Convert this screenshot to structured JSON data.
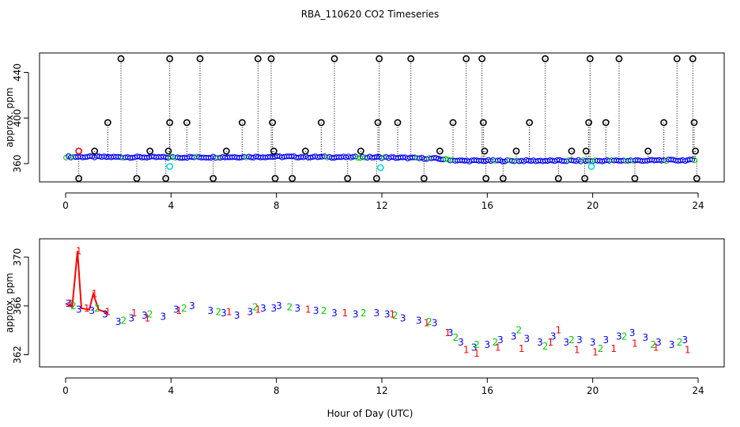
{
  "chart_data": {
    "type": "scatter",
    "title": "RBA_110620  CO2 Timeseries",
    "xlabel": "Hour of Day (UTC)",
    "xlim": [
      0,
      24
    ],
    "xticks": [
      0,
      4,
      8,
      12,
      16,
      20,
      24
    ],
    "colors": {
      "flag_1": "#ff0000",
      "flag_2": "#00cc00",
      "flag_3": "#0000ff",
      "outlier": "#000000",
      "cyan": "#00dddd"
    },
    "panels": [
      {
        "name": "top",
        "ylabel": "approx. ppm",
        "yticks": [
          360,
          400,
          440
        ],
        "ylim": [
          344,
          457
        ],
        "baseline": [
          [
            0,
            366
          ],
          [
            4,
            365.5
          ],
          [
            8,
            366
          ],
          [
            12,
            365.5
          ],
          [
            14,
            364.5
          ],
          [
            15,
            362.5
          ],
          [
            16,
            362.5
          ],
          [
            20,
            362.5
          ],
          [
            24,
            363
          ]
        ],
        "outliers": [
          {
            "x": 0.5,
            "y": 347
          },
          {
            "x": 1.1,
            "y": 371
          },
          {
            "x": 1.6,
            "y": 396
          },
          {
            "x": 2.1,
            "y": 452
          },
          {
            "x": 2.7,
            "y": 347
          },
          {
            "x": 3.2,
            "y": 371
          },
          {
            "x": 3.8,
            "y": 347
          },
          {
            "x": 3.9,
            "y": 371
          },
          {
            "x": 3.95,
            "y": 396
          },
          {
            "x": 3.95,
            "y": 452
          },
          {
            "x": 4.6,
            "y": 396
          },
          {
            "x": 5.1,
            "y": 452
          },
          {
            "x": 5.6,
            "y": 347
          },
          {
            "x": 6.1,
            "y": 371
          },
          {
            "x": 6.7,
            "y": 396
          },
          {
            "x": 7.3,
            "y": 452
          },
          {
            "x": 7.8,
            "y": 452
          },
          {
            "x": 7.85,
            "y": 396
          },
          {
            "x": 7.9,
            "y": 371
          },
          {
            "x": 7.95,
            "y": 347
          },
          {
            "x": 8.6,
            "y": 347
          },
          {
            "x": 9.1,
            "y": 371
          },
          {
            "x": 9.7,
            "y": 396
          },
          {
            "x": 10.2,
            "y": 452
          },
          {
            "x": 10.7,
            "y": 347
          },
          {
            "x": 11.2,
            "y": 371
          },
          {
            "x": 11.8,
            "y": 347
          },
          {
            "x": 11.85,
            "y": 396
          },
          {
            "x": 11.9,
            "y": 452
          },
          {
            "x": 12.6,
            "y": 396
          },
          {
            "x": 13.1,
            "y": 452
          },
          {
            "x": 13.6,
            "y": 347
          },
          {
            "x": 14.2,
            "y": 371
          },
          {
            "x": 14.7,
            "y": 396
          },
          {
            "x": 15.2,
            "y": 452
          },
          {
            "x": 15.8,
            "y": 452
          },
          {
            "x": 15.85,
            "y": 396
          },
          {
            "x": 15.9,
            "y": 371
          },
          {
            "x": 15.95,
            "y": 347
          },
          {
            "x": 16.6,
            "y": 347
          },
          {
            "x": 17.1,
            "y": 371
          },
          {
            "x": 17.6,
            "y": 396
          },
          {
            "x": 18.2,
            "y": 452
          },
          {
            "x": 18.7,
            "y": 347
          },
          {
            "x": 19.2,
            "y": 371
          },
          {
            "x": 19.7,
            "y": 347
          },
          {
            "x": 19.75,
            "y": 371
          },
          {
            "x": 19.85,
            "y": 396
          },
          {
            "x": 19.9,
            "y": 452
          },
          {
            "x": 20.5,
            "y": 396
          },
          {
            "x": 21.0,
            "y": 452
          },
          {
            "x": 21.6,
            "y": 347
          },
          {
            "x": 22.1,
            "y": 371
          },
          {
            "x": 22.7,
            "y": 396
          },
          {
            "x": 23.2,
            "y": 452
          },
          {
            "x": 23.8,
            "y": 452
          },
          {
            "x": 23.85,
            "y": 396
          },
          {
            "x": 23.9,
            "y": 371
          },
          {
            "x": 23.95,
            "y": 347
          }
        ],
        "red_points": [
          {
            "x": 0.5,
            "y": 371
          }
        ],
        "cyan_points": [
          {
            "x": 3.95,
            "y": 357.5
          },
          {
            "x": 11.95,
            "y": 356.5
          },
          {
            "x": 19.95,
            "y": 357.5
          }
        ]
      },
      {
        "name": "bottom",
        "ylabel": "approx. ppm",
        "yticks": [
          362,
          366,
          370
        ],
        "ylim": [
          361,
          371.5
        ],
        "series": [
          {
            "name": "3",
            "color": "#0000ff",
            "points": [
              [
                0.1,
                366.2
              ],
              [
                0.5,
                365.7
              ],
              [
                1.0,
                365.6
              ],
              [
                1.5,
                365.3
              ],
              [
                2.0,
                364.7
              ],
              [
                2.5,
                365.0
              ],
              [
                3.0,
                365.2
              ],
              [
                3.7,
                365.1
              ],
              [
                4.2,
                365.7
              ],
              [
                4.8,
                366.0
              ],
              [
                5.5,
                365.6
              ],
              [
                6.0,
                365.4
              ],
              [
                6.5,
                365.2
              ],
              [
                7.0,
                365.5
              ],
              [
                7.5,
                365.8
              ],
              [
                7.9,
                365.8
              ],
              [
                8.1,
                366.0
              ],
              [
                8.8,
                365.8
              ],
              [
                9.5,
                365.6
              ],
              [
                10.2,
                365.4
              ],
              [
                11.0,
                365.3
              ],
              [
                11.8,
                365.4
              ],
              [
                12.2,
                365.3
              ],
              [
                12.8,
                365.0
              ],
              [
                13.4,
                364.8
              ],
              [
                14.0,
                364.6
              ],
              [
                14.6,
                363.8
              ],
              [
                15.0,
                363.0
              ],
              [
                15.5,
                362.6
              ],
              [
                16.0,
                362.8
              ],
              [
                16.5,
                363.2
              ],
              [
                17.0,
                363.5
              ],
              [
                17.5,
                363.3
              ],
              [
                18.0,
                363.0
              ],
              [
                18.5,
                363.5
              ],
              [
                19.0,
                363.0
              ],
              [
                19.5,
                363.2
              ],
              [
                20.0,
                363.0
              ],
              [
                20.5,
                363.2
              ],
              [
                21.0,
                363.5
              ],
              [
                21.5,
                363.8
              ],
              [
                22.0,
                363.4
              ],
              [
                22.5,
                363.0
              ],
              [
                23.0,
                362.8
              ],
              [
                23.5,
                363.2
              ]
            ]
          },
          {
            "name": "2",
            "color": "#00cc00",
            "points": [
              [
                0.3,
                366.0
              ],
              [
                1.2,
                365.8
              ],
              [
                2.2,
                364.8
              ],
              [
                3.2,
                365.3
              ],
              [
                4.5,
                365.8
              ],
              [
                5.8,
                365.5
              ],
              [
                7.2,
                365.9
              ],
              [
                8.5,
                365.9
              ],
              [
                9.8,
                365.6
              ],
              [
                11.3,
                365.4
              ],
              [
                12.5,
                365.2
              ],
              [
                13.8,
                364.7
              ],
              [
                14.8,
                363.4
              ],
              [
                15.6,
                362.8
              ],
              [
                16.3,
                363.0
              ],
              [
                17.2,
                364.0
              ],
              [
                18.2,
                362.7
              ],
              [
                19.2,
                363.2
              ],
              [
                20.3,
                362.5
              ],
              [
                21.2,
                363.5
              ],
              [
                22.3,
                362.8
              ],
              [
                23.3,
                363.0
              ]
            ]
          },
          {
            "name": "1",
            "color": "#ff0000",
            "points": [
              [
                0.2,
                366.2
              ],
              [
                0.5,
                370.5
              ],
              [
                0.8,
                365.8
              ],
              [
                1.1,
                367.0
              ],
              [
                1.6,
                365.5
              ],
              [
                2.6,
                365.4
              ],
              [
                3.1,
                365.0
              ],
              [
                4.3,
                365.6
              ],
              [
                6.2,
                365.5
              ],
              [
                7.3,
                365.7
              ],
              [
                9.2,
                365.7
              ],
              [
                10.6,
                365.4
              ],
              [
                12.4,
                365.3
              ],
              [
                13.7,
                364.6
              ],
              [
                14.5,
                363.8
              ],
              [
                15.2,
                362.4
              ],
              [
                15.6,
                362.1
              ],
              [
                16.4,
                362.6
              ],
              [
                17.3,
                362.5
              ],
              [
                18.4,
                363.0
              ],
              [
                18.7,
                364.0
              ],
              [
                19.4,
                362.4
              ],
              [
                20.1,
                362.2
              ],
              [
                20.8,
                362.5
              ],
              [
                21.6,
                362.9
              ],
              [
                22.4,
                362.6
              ],
              [
                23.6,
                362.4
              ]
            ]
          }
        ],
        "red_line": [
          [
            0.0,
            366.2
          ],
          [
            0.25,
            365.9
          ],
          [
            0.45,
            370.5
          ],
          [
            0.6,
            365.8
          ],
          [
            0.9,
            365.7
          ],
          [
            1.05,
            367.0
          ],
          [
            1.25,
            365.7
          ],
          [
            1.6,
            365.4
          ]
        ]
      }
    ]
  }
}
